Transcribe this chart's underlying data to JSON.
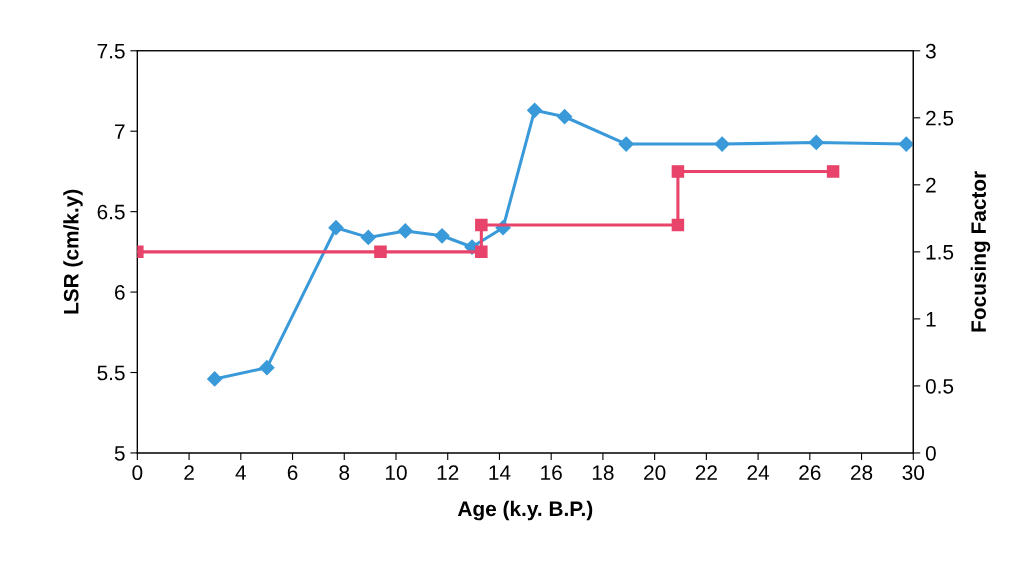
{
  "chart_data": {
    "type": "line",
    "xlabel": "Age (k.y. B.P.)",
    "ylabel": "LSR (cm/k.y)",
    "y2label": "Focusing Factor",
    "xlim": [
      0,
      30
    ],
    "xticks": [
      0,
      2,
      4,
      6,
      8,
      10,
      12,
      14,
      16,
      18,
      20,
      22,
      24,
      26,
      28,
      30
    ],
    "ylim": [
      5,
      7.5
    ],
    "yticks": [
      5,
      5.5,
      6,
      6.5,
      7,
      7.5
    ],
    "y2lim": [
      0,
      3
    ],
    "y2ticks": [
      0,
      0.5,
      1,
      1.5,
      2,
      2.5,
      3
    ],
    "grid": false,
    "legend": false,
    "line_style": "solid",
    "series": [
      {
        "color": "#3a9ad9",
        "marker": "diamond",
        "x": [
          2.99,
          5.01,
          7.68,
          8.93,
          10.36,
          11.78,
          12.94,
          14.14,
          15.36,
          16.52,
          18.9,
          22.61,
          26.25,
          29.73
        ],
        "values": [
          5.46,
          5.53,
          6.4,
          6.34,
          6.38,
          6.35,
          6.28,
          6.4,
          7.13,
          7.09,
          6.92,
          6.92,
          6.93,
          6.92
        ]
      },
      {
        "color": "#e8436a",
        "marker": "square",
        "axis": "y2",
        "x": [
          0,
          9.4,
          13.3,
          13.3,
          20.9,
          20.9,
          26.9
        ],
        "values": [
          1.5,
          1.5,
          1.5,
          1.7,
          1.7,
          2.1,
          2.1
        ]
      }
    ]
  }
}
